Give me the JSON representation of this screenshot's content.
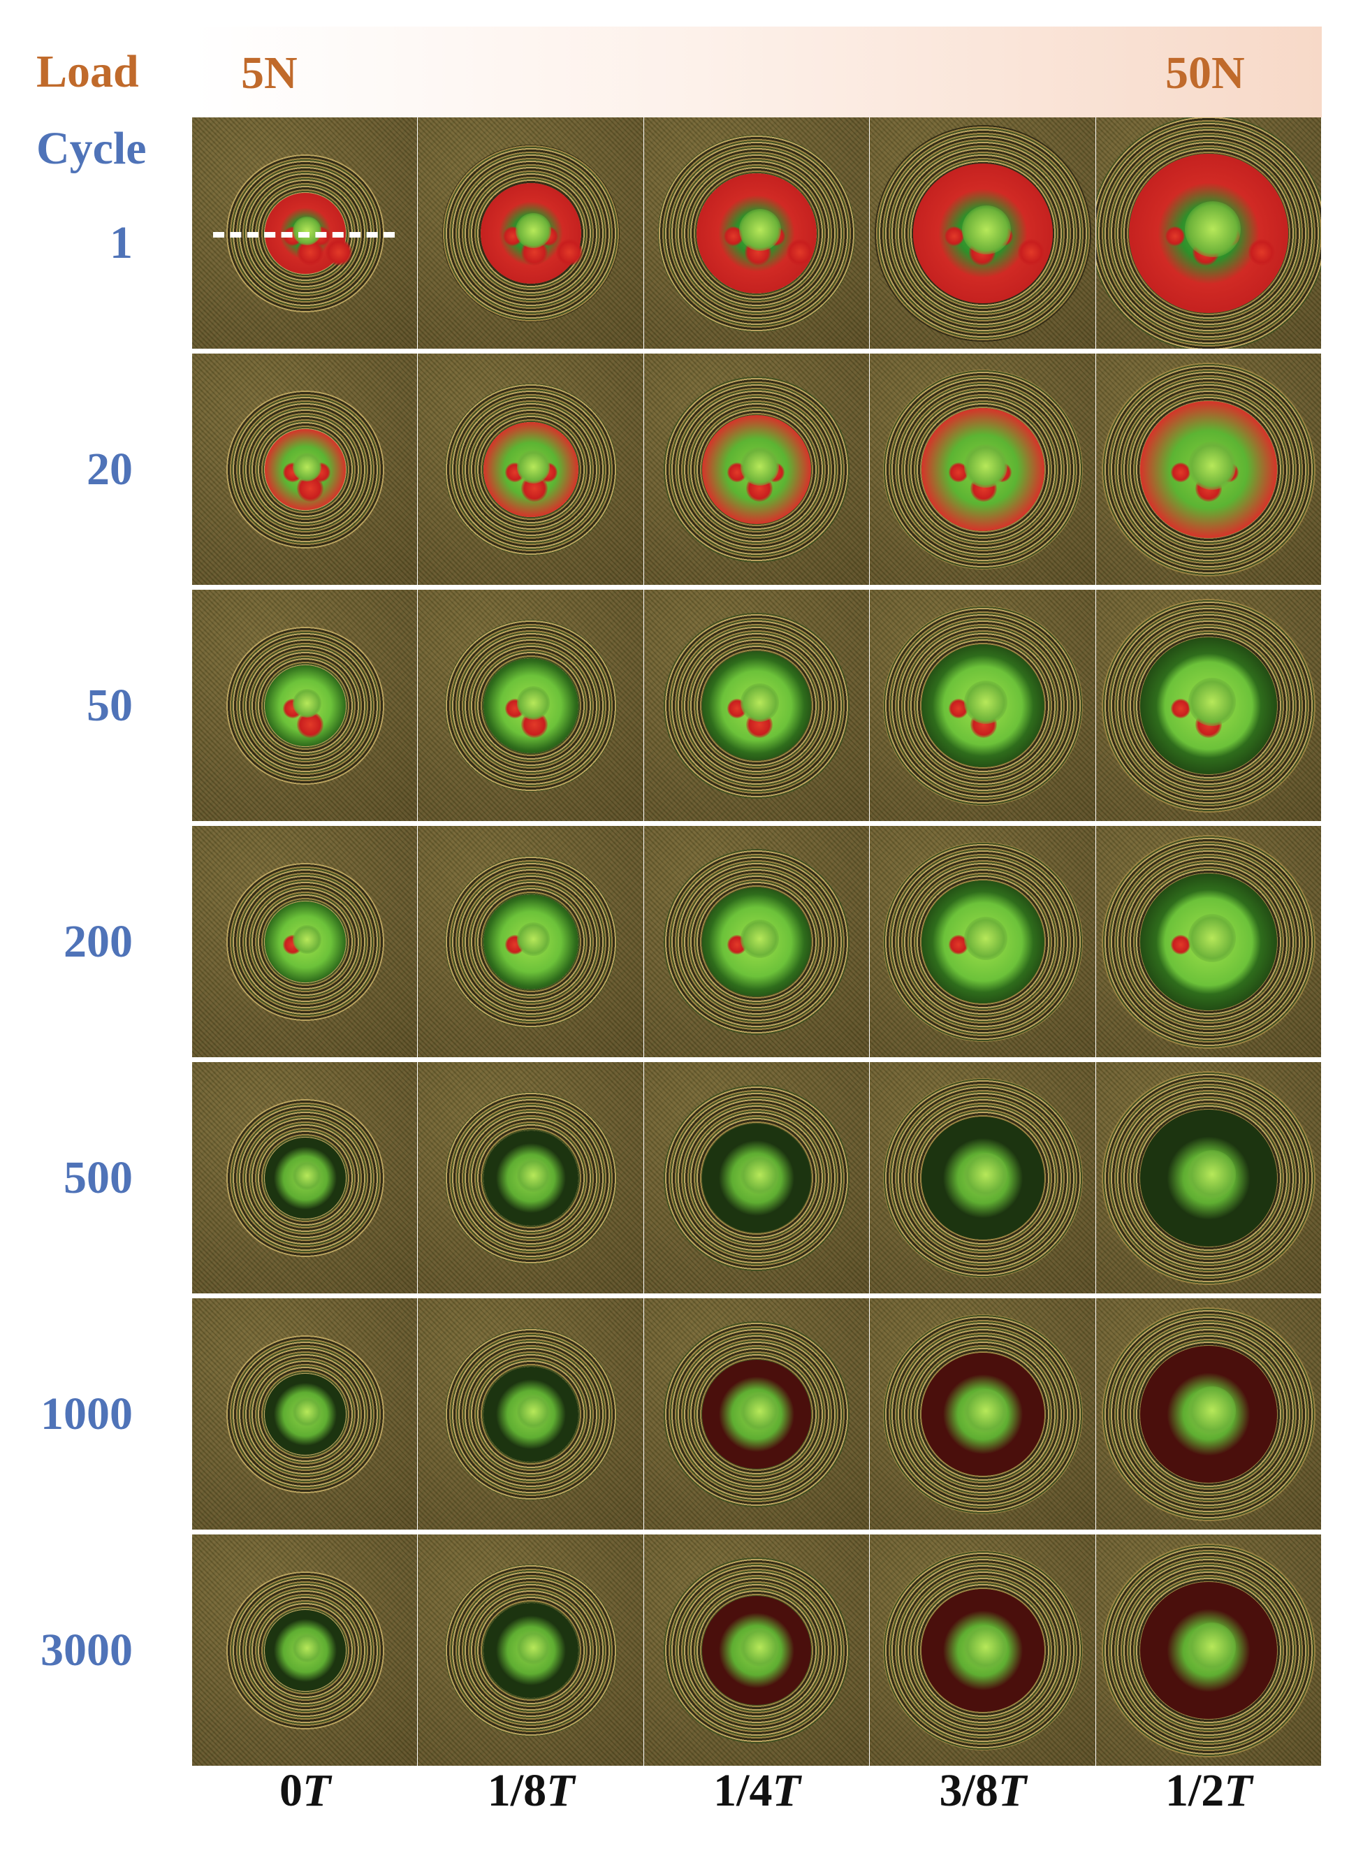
{
  "header": {
    "load_label": "Load",
    "cycle_label": "Cycle",
    "load_start": "5N",
    "load_end": "50N"
  },
  "rows": [
    {
      "cycle": "1"
    },
    {
      "cycle": "20"
    },
    {
      "cycle": "50"
    },
    {
      "cycle": "200"
    },
    {
      "cycle": "500"
    },
    {
      "cycle": "1000"
    },
    {
      "cycle": "3000"
    }
  ],
  "columns": [
    {
      "num": "0",
      "unit": "T"
    },
    {
      "num": "1/8",
      "unit": "T"
    },
    {
      "num": "1/4",
      "unit": "T"
    },
    {
      "num": "3/8",
      "unit": "T"
    },
    {
      "num": "1/2",
      "unit": "T"
    }
  ],
  "colors": {
    "load": "#c06a2b",
    "cycle": "#4f73b8",
    "fringe_red": "#d6282a",
    "fringe_green": "#5fbf2f",
    "background_olive": "#6b5a2c"
  }
}
